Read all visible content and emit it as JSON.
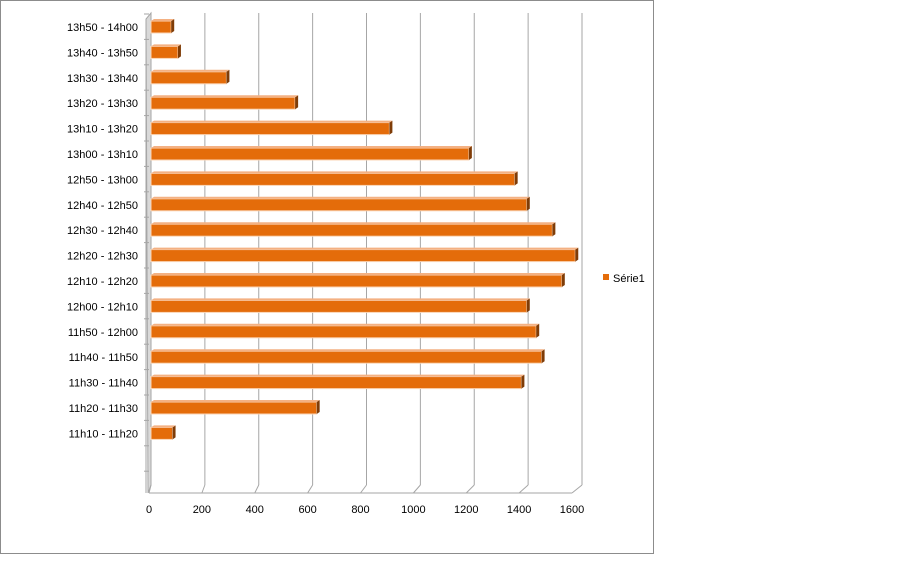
{
  "chart_data": {
    "type": "bar",
    "orientation": "horizontal",
    "title": "",
    "xlabel": "",
    "ylabel": "",
    "categories": [
      "13h50 - 14h00",
      "13h40 - 13h50",
      "13h30 - 13h40",
      "13h20 - 13h30",
      "13h10 - 13h20",
      "13h00 - 13h10",
      "12h50 - 13h00",
      "12h40 - 12h50",
      "12h30 - 12h40",
      "12h20 - 12h30",
      "12h10 - 12h20",
      "12h00 - 12h10",
      "11h50 - 12h00",
      "11h40 - 11h50",
      "11h30 - 11h40",
      "11h20 - 11h30",
      "11h10 - 11h20"
    ],
    "series": [
      {
        "name": "Série1",
        "color": "#e46c0a",
        "values": [
          75,
          100,
          280,
          535,
          885,
          1180,
          1350,
          1395,
          1490,
          1575,
          1525,
          1395,
          1430,
          1450,
          1375,
          615,
          80
        ]
      }
    ],
    "xlim": [
      0,
      1600
    ],
    "xticks": [
      "0",
      "200",
      "400",
      "600",
      "800",
      "1000",
      "1200",
      "1400",
      "1600"
    ],
    "grid": true,
    "legend": "right"
  }
}
